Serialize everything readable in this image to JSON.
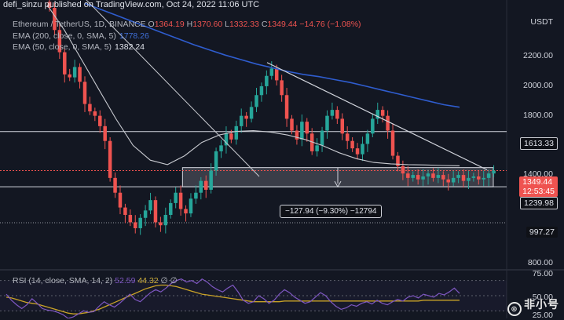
{
  "header": {
    "publish_line": "defi_sinzu published on TradingView.com, Oct 24, 2022 11:06 UTC",
    "currency": "USDT"
  },
  "legend": {
    "symbol": "Ethereum / TetherUS, 1D, BINANCE",
    "open_label": "O",
    "open": "1364.19",
    "high_label": "H",
    "high": "1370.60",
    "low_label": "L",
    "low": "1332.33",
    "close_label": "C",
    "close": "1349.44",
    "change": "−14.76 (−1.08%)",
    "ema200_label": "EMA (200, close, 0, SMA, 5)",
    "ema200_value": "1778.26",
    "ema50_label": "EMA (50, close, 0, SMA, 5)",
    "ema50_value": "1382.24"
  },
  "rsi_legend": {
    "label": "RSI (14, close, SMA, 14, 2)",
    "rsi_value": "52.59",
    "sma_value": "44.32",
    "na1": "∅",
    "na2": "∅"
  },
  "price_axis": {
    "ticks": [
      "2200.00",
      "2000.00",
      "1800.00",
      "1400.00",
      "800.00"
    ]
  },
  "price_tags": {
    "resistance": "1613.33",
    "current": "1349.44",
    "countdown": "12:53:45",
    "support": "1239.98",
    "low_level": "997.27"
  },
  "rsi_axis": {
    "ticks": [
      "75.00",
      "50.00",
      "25.00"
    ]
  },
  "measure_label": "−127.94 (−9.30%) −12794",
  "watermark": "非小号",
  "colors": {
    "background": "#131722",
    "up": "#26a69a",
    "down": "#ef5350",
    "ema200": "#2f5dcf",
    "ema50": "#c8cad0",
    "rsi": "#7e57c2",
    "rsi_ma": "#c9a227",
    "trendline": "#d1d4dc",
    "tag_red": "#ef5350"
  },
  "chart_data": {
    "type": "candlestick",
    "y_range": [
      700,
      2450
    ],
    "levels": [
      1613.33,
      1349.44,
      1239.98,
      997.27
    ],
    "trendline": {
      "from": 2080,
      "to": 1355
    },
    "box": {
      "top": 1370,
      "bottom": 1240
    },
    "ema200": [
      2480,
      2440,
      2400,
      2360,
      2320,
      2280,
      2240,
      2200,
      2165,
      2130,
      2100,
      2070,
      2045,
      2020,
      2000,
      1985,
      1965,
      1945,
      1920,
      1895,
      1870,
      1845,
      1820,
      1795,
      1778
    ],
    "ema50": [
      2470,
      2300,
      2100,
      1900,
      1700,
      1520,
      1420,
      1390,
      1450,
      1540,
      1590,
      1615,
      1620,
      1610,
      1590,
      1560,
      1520,
      1470,
      1430,
      1405,
      1395,
      1390,
      1388,
      1384,
      1382
    ],
    "closes": [
      2450,
      2300,
      2150,
      2000,
      1980,
      2050,
      1950,
      1800,
      1750,
      1720,
      1650,
      1550,
      1300,
      1200,
      1100,
      1050,
      1000,
      960,
      1030,
      1080,
      1150,
      1000,
      980,
      1050,
      1130,
      1200,
      1090,
      1060,
      1160,
      1200,
      1280,
      1220,
      1350,
      1480,
      1520,
      1600,
      1560,
      1650,
      1720,
      1700,
      1780,
      1860,
      1920,
      1990,
      2040,
      1960,
      1860,
      1700,
      1620,
      1560,
      1680,
      1600,
      1480,
      1520,
      1620,
      1720,
      1760,
      1700,
      1600,
      1550,
      1500,
      1460,
      1530,
      1600,
      1700,
      1760,
      1720,
      1620,
      1450,
      1380,
      1330,
      1300,
      1320,
      1290,
      1310,
      1330,
      1300,
      1320,
      1290,
      1270,
      1300,
      1320,
      1280,
      1300,
      1310,
      1290,
      1300,
      1330,
      1349
    ],
    "rsi": [
      52,
      44,
      38,
      33,
      38,
      46,
      40,
      33,
      31,
      30,
      28,
      25,
      20,
      22,
      26,
      30,
      28,
      29,
      36,
      42,
      38,
      35,
      40,
      46,
      52,
      45,
      42,
      48,
      54,
      58,
      55,
      60,
      66,
      70,
      72,
      68,
      70,
      66,
      72,
      68,
      62,
      58,
      55,
      60,
      64,
      55,
      44,
      40,
      42,
      50,
      46,
      40,
      44,
      52,
      58,
      54,
      48,
      44,
      40,
      42,
      48,
      54,
      50,
      42,
      36,
      32,
      34,
      38,
      36,
      40,
      42,
      39,
      44,
      40,
      38,
      42,
      45,
      43,
      48,
      50,
      47,
      52,
      50,
      48,
      53,
      51,
      55,
      60,
      53
    ],
    "rsi_ma": [
      48,
      47,
      45,
      43,
      41,
      40,
      39,
      37,
      35,
      33,
      31,
      29,
      27,
      26,
      26,
      27,
      28,
      30,
      32,
      35,
      38,
      41,
      44,
      47,
      50,
      53,
      56,
      59,
      61,
      63,
      64,
      64,
      63,
      62,
      60,
      58,
      56,
      54,
      52,
      51,
      50,
      49,
      48,
      47,
      46,
      45,
      44,
      43,
      42,
      42,
      42,
      42,
      42,
      42,
      43,
      43,
      43,
      43,
      43,
      43,
      43,
      43,
      43,
      43,
      43,
      43,
      43,
      43,
      43,
      43,
      43,
      43,
      43,
      43,
      43,
      43,
      43,
      43,
      43,
      43,
      43,
      44,
      44,
      44,
      44,
      44,
      44,
      44,
      44
    ]
  }
}
